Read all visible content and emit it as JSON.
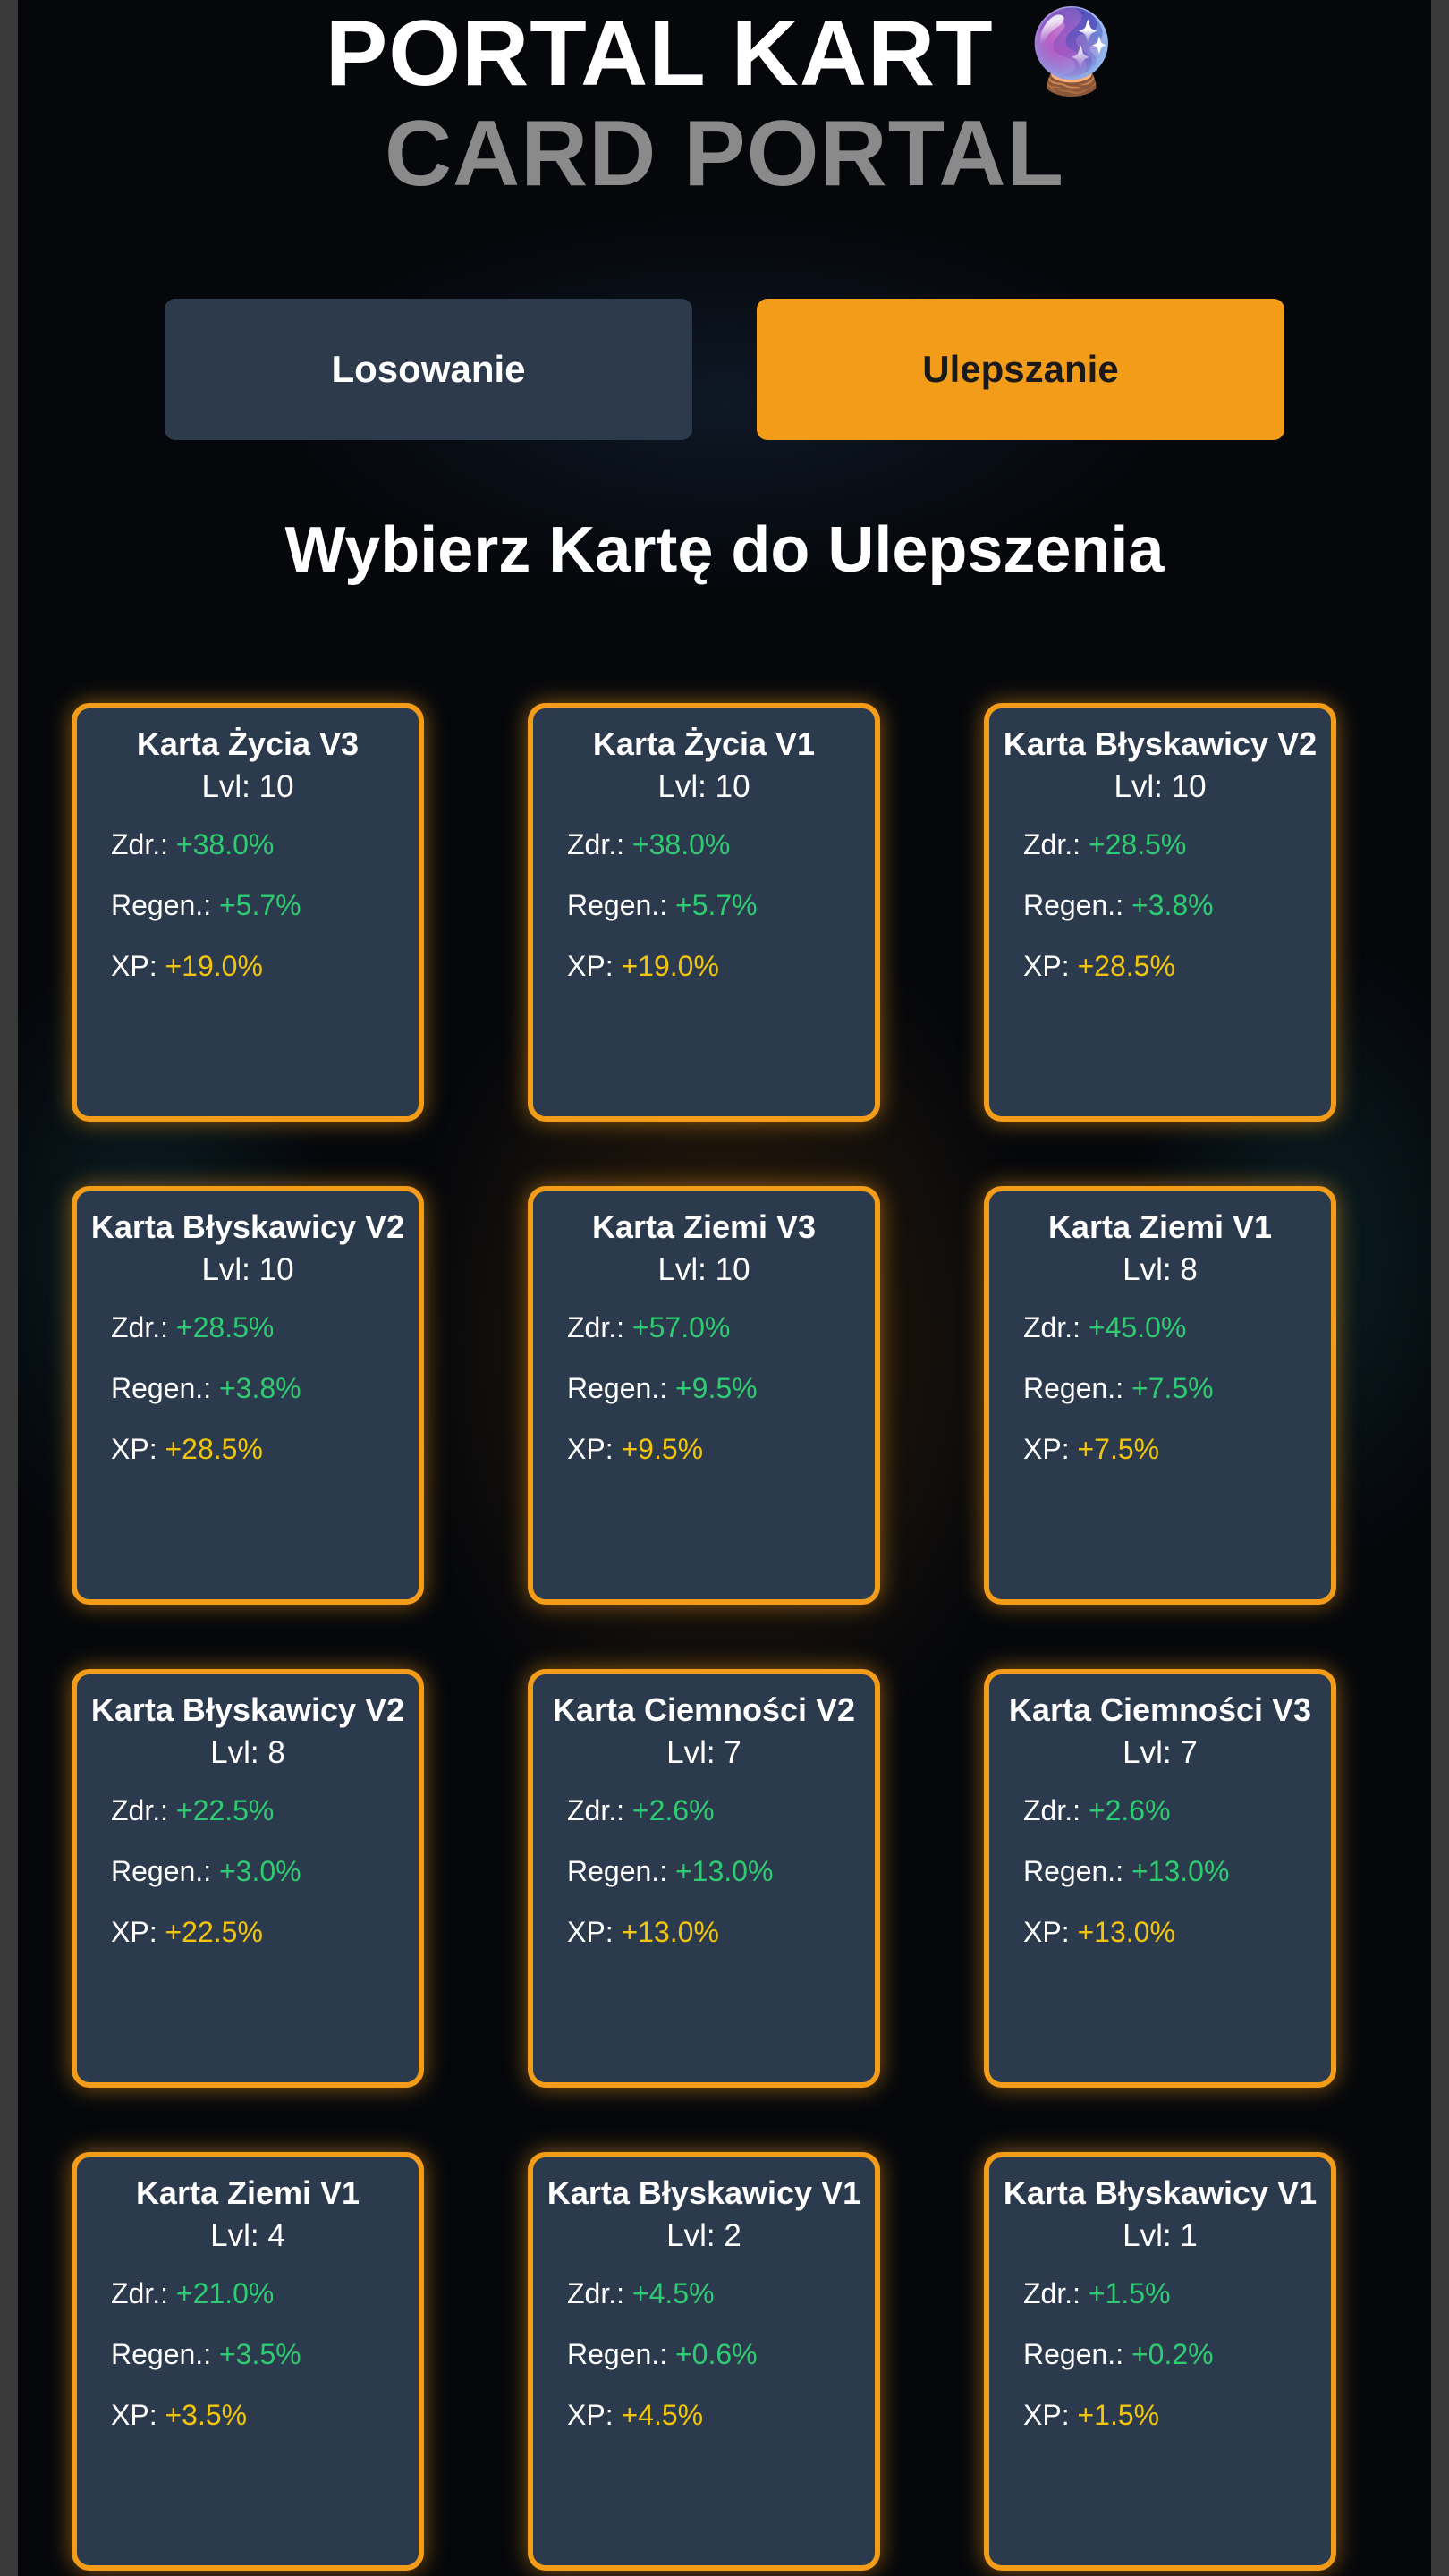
{
  "header": {
    "title": "PORTAL KART",
    "title_icon": "🔮",
    "subtitle": "CARD PORTAL"
  },
  "tabs": [
    {
      "label": "Losowanie",
      "active": false
    },
    {
      "label": "Ulepszanie",
      "active": true
    }
  ],
  "section_heading": "Wybierz Kartę do Ulepszenia",
  "stat_labels": {
    "hp": "Zdr.:",
    "regen": "Regen.:",
    "xp": "XP:"
  },
  "colors": {
    "accent": "#f39c1a",
    "card_bg": "#2c3a4d",
    "stat_green": "#2ecc71",
    "stat_yellow": "#f1c40f"
  },
  "cards": [
    {
      "name": "Karta Życia V3",
      "level": "Lvl: 10",
      "hp": "+38.0%",
      "regen": "+5.7%",
      "xp": "+19.0%"
    },
    {
      "name": "Karta Życia V1",
      "level": "Lvl: 10",
      "hp": "+38.0%",
      "regen": "+5.7%",
      "xp": "+19.0%"
    },
    {
      "name": "Karta Błyskawicy V2",
      "level": "Lvl: 10",
      "hp": "+28.5%",
      "regen": "+3.8%",
      "xp": "+28.5%"
    },
    {
      "name": "Karta Błyskawicy V2",
      "level": "Lvl: 10",
      "hp": "+28.5%",
      "regen": "+3.8%",
      "xp": "+28.5%"
    },
    {
      "name": "Karta Ziemi V3",
      "level": "Lvl: 10",
      "hp": "+57.0%",
      "regen": "+9.5%",
      "xp": "+9.5%"
    },
    {
      "name": "Karta Ziemi V1",
      "level": "Lvl: 8",
      "hp": "+45.0%",
      "regen": "+7.5%",
      "xp": "+7.5%"
    },
    {
      "name": "Karta Błyskawicy V2",
      "level": "Lvl: 8",
      "hp": "+22.5%",
      "regen": "+3.0%",
      "xp": "+22.5%"
    },
    {
      "name": "Karta Ciemności V2",
      "level": "Lvl: 7",
      "hp": "+2.6%",
      "regen": "+13.0%",
      "xp": "+13.0%"
    },
    {
      "name": "Karta Ciemności V3",
      "level": "Lvl: 7",
      "hp": "+2.6%",
      "regen": "+13.0%",
      "xp": "+13.0%"
    },
    {
      "name": "Karta Ziemi V1",
      "level": "Lvl: 4",
      "hp": "+21.0%",
      "regen": "+3.5%",
      "xp": "+3.5%"
    },
    {
      "name": "Karta Błyskawicy V1",
      "level": "Lvl: 2",
      "hp": "+4.5%",
      "regen": "+0.6%",
      "xp": "+4.5%"
    },
    {
      "name": "Karta Błyskawicy V1",
      "level": "Lvl: 1",
      "hp": "+1.5%",
      "regen": "+0.2%",
      "xp": "+1.5%"
    }
  ]
}
